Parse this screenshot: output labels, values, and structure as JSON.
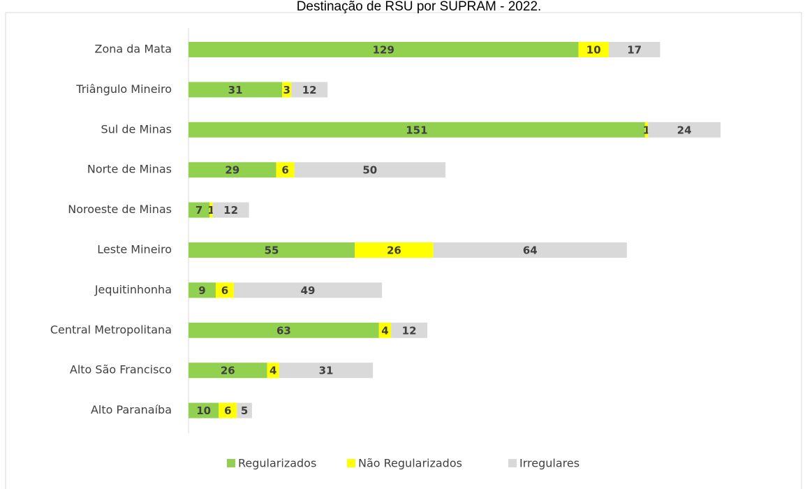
{
  "chart_data": {
    "type": "stacked-bar-horizontal",
    "title": "Destinação de RSU por SUPRAM - 2022.",
    "categories": [
      "Zona da Mata",
      "Triângulo Mineiro",
      "Sul de Minas",
      "Norte de Minas",
      "Noroeste de Minas",
      "Leste Mineiro",
      "Jequitinhonha",
      "Central Metropolitana",
      "Alto São Francisco",
      "Alto Paranaíba"
    ],
    "series": [
      {
        "name": "Regularizados",
        "color": "#92d050",
        "values": [
          129,
          31,
          151,
          29,
          7,
          55,
          9,
          63,
          26,
          10
        ]
      },
      {
        "name": "Não Regularizados",
        "color": "#ffff00",
        "values": [
          10,
          3,
          1,
          6,
          1,
          26,
          6,
          4,
          4,
          6
        ]
      },
      {
        "name": "Irregulares",
        "color": "#d9d9d9",
        "values": [
          17,
          12,
          24,
          50,
          12,
          64,
          49,
          12,
          31,
          5
        ]
      }
    ],
    "xlim": [
      0,
      200
    ],
    "legend": "bottom"
  }
}
